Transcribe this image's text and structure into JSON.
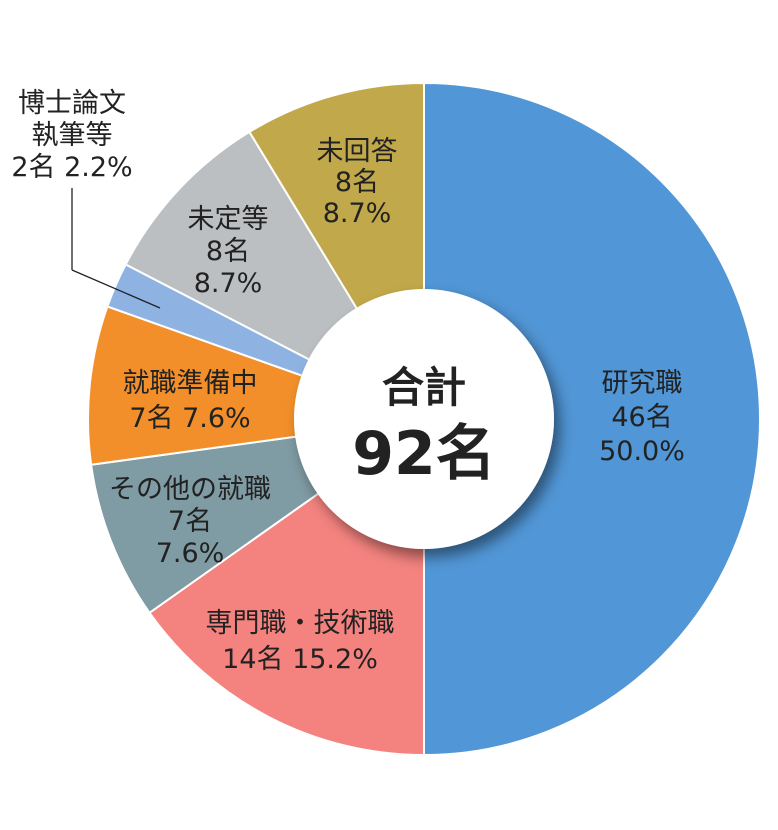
{
  "chart_data": {
    "type": "pie",
    "variant": "donut",
    "center": {
      "title": "合計",
      "value": "92名"
    },
    "slices": [
      {
        "lines": [
          "研究職",
          "46名",
          "50.0%"
        ],
        "count": 46,
        "percent": 50.0,
        "color": "#5196d6"
      },
      {
        "lines": [
          "専門職・技術職",
          "14名 15.2%"
        ],
        "count": 14,
        "percent": 15.2,
        "color": "#f4837f"
      },
      {
        "lines": [
          "その他の就職",
          "7名",
          "7.6%"
        ],
        "count": 7,
        "percent": 7.6,
        "color": "#7f9ba3"
      },
      {
        "lines": [
          "就職準備中",
          "7名 7.6%"
        ],
        "count": 7,
        "percent": 7.6,
        "color": "#f28f2a"
      },
      {
        "lines": [
          "博士論文",
          "執筆等",
          "2名 2.2%"
        ],
        "count": 2,
        "percent": 2.2,
        "color": "#8eb3e3"
      },
      {
        "lines": [
          "未定等",
          "8名",
          "8.7%"
        ],
        "count": 8,
        "percent": 8.7,
        "color": "#bcbfc2"
      },
      {
        "lines": [
          "未回答",
          "8名",
          "8.7%"
        ],
        "count": 8,
        "percent": 8.7,
        "color": "#c1a84a"
      }
    ]
  }
}
